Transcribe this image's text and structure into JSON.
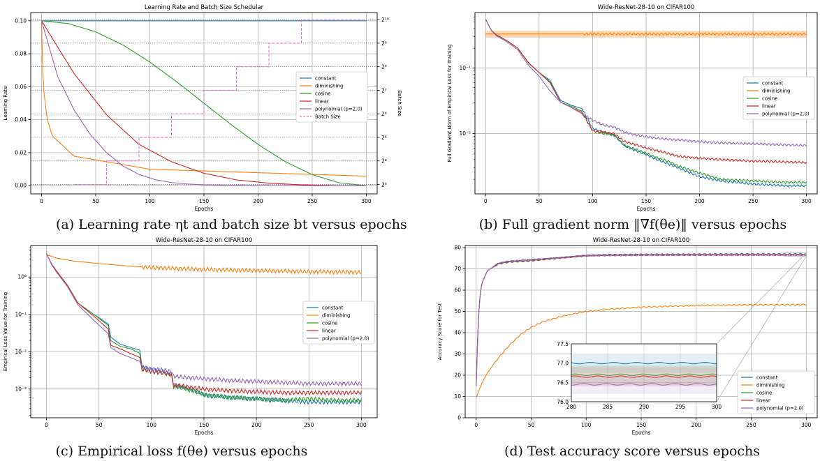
{
  "colors": {
    "constant": "#1f77b4",
    "diminishing": "#ff7f0e",
    "cosine": "#2ca02c",
    "linear": "#d62728",
    "polynomial": "#9467bd",
    "batch": "#e377c2"
  },
  "captions": {
    "a": "(a) Learning rate ηt and batch size bt versus epochs",
    "b": "(b) Full gradient norm ‖∇f(θe)‖ versus epochs",
    "c": "(c) Empirical loss f(θe) versus epochs",
    "d": "(d) Test accuracy score versus epochs"
  },
  "legend_labels": [
    "constant",
    "diminishing",
    "cosine",
    "linear",
    "polynomial (p=2.0)"
  ],
  "chart_data": [
    {
      "id": "a",
      "type": "line",
      "title": "Learning Rate and Batch Size Schedular",
      "xlabel": "Epochs",
      "ylabel": "Learning Rate",
      "ylabel_right": "Batch Size",
      "xlim": [
        -10,
        310
      ],
      "ylim": [
        -0.005,
        0.105
      ],
      "xticks": [
        0,
        50,
        100,
        150,
        200,
        250,
        300
      ],
      "yticks": [
        0.0,
        0.02,
        0.04,
        0.06,
        0.08,
        0.1
      ],
      "ytick_labels": [
        "0.00",
        "0.02",
        "0.04",
        "0.06",
        "0.08",
        "0.10"
      ],
      "right_ylim": [
        2.6,
        10.3
      ],
      "right_ticks": [
        3,
        4,
        5,
        6,
        7,
        8,
        9,
        10
      ],
      "right_tick_labels": [
        "2³",
        "2⁴",
        "2⁵",
        "2⁶",
        "2⁷",
        "2⁸",
        "2⁹",
        "2¹⁰"
      ],
      "legend_position": "center-right",
      "grid": true,
      "series": [
        {
          "name": "constant",
          "x": [
            0,
            300
          ],
          "values": [
            0.1,
            0.1
          ]
        },
        {
          "name": "diminishing",
          "x": [
            0,
            1,
            2,
            5,
            10,
            30,
            100,
            300
          ],
          "values": [
            0.1,
            0.0707,
            0.0577,
            0.0408,
            0.0302,
            0.0179,
            0.00995,
            0.00577
          ]
        },
        {
          "name": "cosine",
          "x": [
            0,
            25,
            50,
            75,
            100,
            125,
            150,
            175,
            200,
            225,
            250,
            275,
            300
          ],
          "values": [
            0.1,
            0.0983,
            0.0933,
            0.0854,
            0.075,
            0.0629,
            0.05,
            0.0371,
            0.025,
            0.0146,
            0.0067,
            0.0017,
            0.0
          ]
        },
        {
          "name": "linear",
          "x": [
            0,
            30,
            60,
            90,
            120,
            150,
            180,
            210,
            240,
            270,
            300
          ],
          "values": [
            0.1,
            0.068,
            0.043,
            0.025,
            0.0145,
            0.0075,
            0.0035,
            0.0015,
            0.0005,
            0.0001,
            0.0
          ]
        },
        {
          "name": "polynomial (p=2.0)",
          "x": [
            0,
            15,
            30,
            45,
            60,
            75,
            90,
            105,
            120,
            135,
            150,
            180,
            210,
            240,
            300
          ],
          "values": [
            0.1,
            0.066,
            0.046,
            0.031,
            0.02,
            0.012,
            0.0068,
            0.0036,
            0.0019,
            0.001,
            0.0005,
            0.0002,
            0.0001,
            0.0,
            0.0
          ]
        },
        {
          "name": "Batch Size",
          "axis": "right",
          "x": [
            30,
            60,
            90,
            120,
            150,
            180,
            210,
            240,
            270,
            300
          ],
          "values": [
            3,
            4,
            5,
            6,
            7,
            8,
            9,
            10,
            10,
            10
          ]
        }
      ]
    },
    {
      "id": "b",
      "type": "line",
      "title": "Wide-ResNet-28-10 on CIFAR100",
      "xlabel": "Epochs",
      "ylabel": "Full Gradient Norm of Empirical Loss for Training",
      "xlim": [
        -10,
        310
      ],
      "ylim": [
        0.0012,
        0.7
      ],
      "yscale": "log",
      "xticks": [
        0,
        50,
        100,
        150,
        200,
        250,
        300
      ],
      "yticks": [
        0.01,
        0.1
      ],
      "ytick_labels": [
        "10⁻²",
        "10⁻¹"
      ],
      "legend_position": "center-right",
      "grid": true,
      "series": [
        {
          "name": "constant",
          "x": [
            0,
            5,
            10,
            20,
            30,
            40,
            50,
            60,
            70,
            80,
            90,
            100,
            110,
            120,
            130,
            140,
            150,
            160,
            170,
            180,
            200,
            220,
            250,
            280,
            300
          ],
          "values": [
            0.55,
            0.38,
            0.32,
            0.26,
            0.2,
            0.12,
            0.085,
            0.065,
            0.032,
            0.027,
            0.024,
            0.012,
            0.0105,
            0.0095,
            0.0065,
            0.0055,
            0.0048,
            0.004,
            0.0035,
            0.003,
            0.0022,
            0.0019,
            0.0017,
            0.0016,
            0.0016
          ]
        },
        {
          "name": "diminishing",
          "x": [
            0,
            300
          ],
          "values": [
            0.33,
            0.33
          ]
        },
        {
          "name": "cosine",
          "x": [
            0,
            5,
            10,
            20,
            30,
            40,
            50,
            60,
            70,
            80,
            90,
            100,
            110,
            120,
            130,
            140,
            150,
            160,
            170,
            180,
            200,
            220,
            250,
            280,
            300
          ],
          "values": [
            0.55,
            0.38,
            0.32,
            0.26,
            0.2,
            0.12,
            0.085,
            0.062,
            0.03,
            0.026,
            0.022,
            0.011,
            0.01,
            0.0095,
            0.0065,
            0.0058,
            0.005,
            0.0043,
            0.0038,
            0.0032,
            0.0025,
            0.002,
            0.0019,
            0.0018,
            0.0018
          ]
        },
        {
          "name": "linear",
          "x": [
            0,
            5,
            10,
            20,
            30,
            40,
            50,
            60,
            70,
            80,
            90,
            100,
            110,
            120,
            130,
            140,
            150,
            160,
            170,
            180,
            200,
            220,
            250,
            280,
            300
          ],
          "values": [
            0.55,
            0.38,
            0.32,
            0.26,
            0.2,
            0.12,
            0.085,
            0.06,
            0.03,
            0.025,
            0.021,
            0.011,
            0.0105,
            0.01,
            0.0075,
            0.0068,
            0.006,
            0.0055,
            0.005,
            0.0045,
            0.0042,
            0.004,
            0.0038,
            0.0037,
            0.0036
          ]
        },
        {
          "name": "polynomial (p=2.0)",
          "x": [
            0,
            5,
            10,
            20,
            30,
            40,
            50,
            60,
            70,
            80,
            90,
            100,
            110,
            120,
            130,
            140,
            150,
            160,
            170,
            180,
            200,
            220,
            250,
            280,
            300
          ],
          "values": [
            0.55,
            0.38,
            0.31,
            0.25,
            0.19,
            0.11,
            0.075,
            0.045,
            0.03,
            0.025,
            0.02,
            0.016,
            0.0135,
            0.0125,
            0.0105,
            0.0095,
            0.009,
            0.0085,
            0.0082,
            0.008,
            0.0075,
            0.0072,
            0.007,
            0.0067,
            0.0066
          ]
        }
      ]
    },
    {
      "id": "c",
      "type": "line",
      "title": "Wide-ResNet-28-10 on CIFAR100",
      "xlabel": "Epochs",
      "ylabel": "Empirical Loss Value for Training",
      "xlim": [
        -15,
        315
      ],
      "ylim": [
        0.00017,
        7
      ],
      "yscale": "log",
      "xticks": [
        0,
        50,
        100,
        150,
        200,
        250,
        300
      ],
      "yticks": [
        0.001,
        0.01,
        0.1,
        1
      ],
      "ytick_labels": [
        "10⁻³",
        "10⁻²",
        "10⁻¹",
        "10⁰"
      ],
      "legend_position": "center-right",
      "grid": true,
      "series": [
        {
          "name": "constant",
          "x": [
            0,
            5,
            10,
            20,
            30,
            45,
            59,
            61,
            70,
            80,
            89,
            91,
            100,
            119,
            121,
            140,
            150,
            175,
            200,
            225,
            250,
            275,
            300
          ],
          "values": [
            4.2,
            2.2,
            1.4,
            0.6,
            0.2,
            0.1,
            0.055,
            0.025,
            0.016,
            0.013,
            0.011,
            0.0038,
            0.0034,
            0.0026,
            0.0013,
            0.00095,
            0.0007,
            0.0006,
            0.00055,
            0.0005,
            0.00045,
            0.00045,
            0.00045
          ]
        },
        {
          "name": "diminishing",
          "x": [
            0,
            10,
            25,
            50,
            75,
            100,
            150,
            200,
            250,
            300
          ],
          "values": [
            4.0,
            3.2,
            2.7,
            2.3,
            2.0,
            1.8,
            1.6,
            1.5,
            1.4,
            1.35
          ]
        },
        {
          "name": "cosine",
          "x": [
            0,
            5,
            10,
            20,
            30,
            45,
            59,
            61,
            70,
            80,
            89,
            91,
            100,
            119,
            121,
            140,
            150,
            175,
            200,
            225,
            250,
            275,
            300
          ],
          "values": [
            4.2,
            2.2,
            1.4,
            0.6,
            0.2,
            0.1,
            0.05,
            0.02,
            0.014,
            0.012,
            0.009,
            0.0035,
            0.003,
            0.0024,
            0.0012,
            0.0009,
            0.0007,
            0.0006,
            0.00055,
            0.0005,
            0.00055,
            0.0005,
            0.0005
          ]
        },
        {
          "name": "linear",
          "x": [
            0,
            5,
            10,
            20,
            30,
            45,
            59,
            61,
            70,
            80,
            89,
            91,
            100,
            119,
            121,
            140,
            150,
            175,
            200,
            225,
            250,
            275,
            300
          ],
          "values": [
            4.2,
            2.2,
            1.4,
            0.6,
            0.2,
            0.09,
            0.04,
            0.015,
            0.012,
            0.009,
            0.007,
            0.0033,
            0.003,
            0.0025,
            0.0013,
            0.0011,
            0.001,
            0.0009,
            0.00085,
            0.0008,
            0.0008,
            0.0008,
            0.0008
          ]
        },
        {
          "name": "polynomial (p=2.0)",
          "x": [
            0,
            5,
            10,
            20,
            30,
            45,
            59,
            61,
            70,
            80,
            89,
            91,
            100,
            119,
            121,
            140,
            150,
            175,
            200,
            225,
            250,
            275,
            300
          ],
          "values": [
            4.2,
            2.1,
            1.3,
            0.55,
            0.18,
            0.07,
            0.03,
            0.013,
            0.009,
            0.007,
            0.0055,
            0.0038,
            0.0035,
            0.003,
            0.0022,
            0.002,
            0.0019,
            0.0017,
            0.0016,
            0.0015,
            0.0014,
            0.0014,
            0.0014
          ]
        }
      ]
    },
    {
      "id": "d",
      "type": "line",
      "title": "Wide-ResNet-28-10 on CIFAR100",
      "xlabel": "Epochs",
      "ylabel": "Accuracy Score for Test",
      "xlim": [
        -10,
        310
      ],
      "ylim": [
        0,
        81
      ],
      "xticks": [
        0,
        50,
        100,
        150,
        200,
        250,
        300
      ],
      "yticks": [
        0,
        10,
        20,
        30,
        40,
        50,
        60,
        70,
        80
      ],
      "legend_position": "lower-right",
      "grid": true,
      "series": [
        {
          "name": "constant",
          "x": [
            0,
            1,
            2,
            3,
            5,
            10,
            20,
            30,
            50,
            70,
            100,
            120,
            150,
            200,
            250,
            300
          ],
          "values": [
            15,
            33,
            46,
            55,
            63,
            69,
            72.5,
            73.5,
            74.2,
            75,
            76.3,
            76.6,
            76.8,
            76.9,
            77.0,
            77.0
          ]
        },
        {
          "name": "diminishing",
          "x": [
            0,
            5,
            10,
            20,
            30,
            40,
            50,
            60,
            80,
            100,
            120,
            150,
            200,
            250,
            300
          ],
          "values": [
            9.5,
            16,
            21,
            28,
            34,
            39,
            42.5,
            45,
            48,
            50,
            51,
            52,
            52.8,
            53.1,
            53.2
          ]
        },
        {
          "name": "cosine",
          "x": [
            0,
            1,
            2,
            3,
            5,
            10,
            20,
            30,
            50,
            70,
            100,
            120,
            150,
            200,
            250,
            300
          ],
          "values": [
            15,
            33,
            46,
            55,
            63,
            69,
            72.3,
            73.2,
            73.8,
            74.8,
            76.2,
            76.5,
            76.6,
            76.7,
            76.7,
            76.7
          ]
        },
        {
          "name": "linear",
          "x": [
            0,
            1,
            2,
            3,
            5,
            10,
            20,
            30,
            50,
            70,
            100,
            120,
            150,
            200,
            250,
            300
          ],
          "values": [
            15,
            33,
            46,
            55,
            63,
            69,
            72.4,
            73.4,
            74.0,
            74.9,
            76.2,
            76.5,
            76.6,
            76.65,
            76.65,
            76.65
          ]
        },
        {
          "name": "polynomial (p=2.0)",
          "x": [
            0,
            1,
            2,
            3,
            5,
            10,
            20,
            30,
            50,
            70,
            100,
            120,
            150,
            200,
            250,
            300
          ],
          "values": [
            15,
            33,
            46,
            55,
            63,
            69,
            72.6,
            73.6,
            74.3,
            75.0,
            76.2,
            76.3,
            76.4,
            76.45,
            76.45,
            76.45
          ]
        }
      ],
      "inset": {
        "xlim": [
          280,
          300
        ],
        "ylim": [
          76.0,
          77.5
        ],
        "xticks": [
          280,
          285,
          290,
          295,
          300
        ],
        "yticks": [
          76.0,
          76.5,
          77.0,
          77.5
        ],
        "ytick_labels": [
          "76.0",
          "76.5",
          "77.0",
          "77.5"
        ]
      }
    }
  ]
}
